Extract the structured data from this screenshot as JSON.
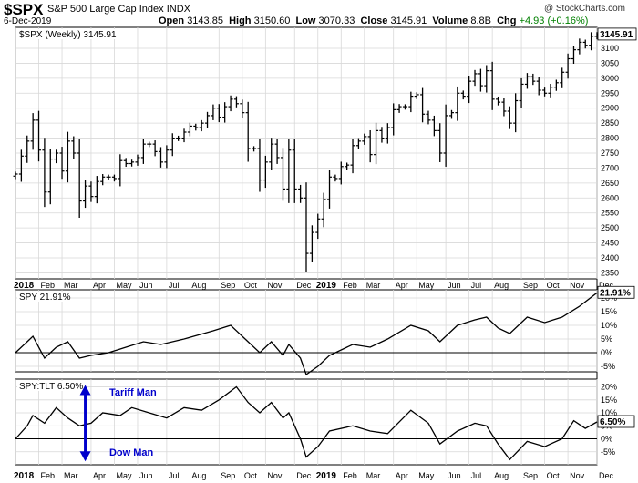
{
  "header": {
    "symbol": "$SPX",
    "name": "S&P 500 Large Cap Index",
    "exchange": "INDX",
    "date": "6-Dec-2019",
    "open_label": "Open",
    "open": "3143.85",
    "high_label": "High",
    "high": "3150.60",
    "low_label": "Low",
    "low": "3070.33",
    "close_label": "Close",
    "close": "3145.91",
    "volume_label": "Volume",
    "volume": "8.8B",
    "chg_label": "Chg",
    "chg": "+4.93 (+0.16%)",
    "chg_color": "#008000",
    "copyright": "@ StockCharts.com"
  },
  "colors": {
    "price_bar": "#000000",
    "line": "#000000",
    "arrow": "#0000cc",
    "annotation": "#0000cc",
    "grid": "#d8d8d8"
  },
  "chart_data": [
    {
      "type": "line",
      "title": "$SPX (Weekly) 3145.91",
      "last_value_label": "3145.91",
      "style": "ohlc bars",
      "ylim": [
        2330,
        3170
      ],
      "y_ticks": [
        2350,
        2400,
        2450,
        2500,
        2550,
        2600,
        2650,
        2700,
        2750,
        2800,
        2850,
        2900,
        2950,
        3000,
        3050,
        3100
      ],
      "x_ticks": [
        "2018",
        "Feb",
        "Mar",
        "Apr",
        "May",
        "Jun",
        "Jul",
        "Aug",
        "Sep",
        "Oct",
        "Nov",
        "Dec",
        "2019",
        "Feb",
        "Mar",
        "Apr",
        "May",
        "Jun",
        "Jul",
        "Aug",
        "Sep",
        "Oct",
        "Nov",
        "Dec"
      ],
      "x_start": "2018-01-05",
      "series": [
        {
          "values": [
            {
              "x": "2018-01-05",
              "close": 2680
            },
            {
              "x": "2018-01-12",
              "close": 2740
            },
            {
              "x": "2018-01-19",
              "close": 2790
            },
            {
              "x": "2018-01-26",
              "close": 2860
            },
            {
              "x": "2018-02-02",
              "close": 2760
            },
            {
              "x": "2018-02-09",
              "close": 2620
            },
            {
              "x": "2018-02-16",
              "close": 2730
            },
            {
              "x": "2018-02-23",
              "close": 2750
            },
            {
              "x": "2018-03-02",
              "close": 2690
            },
            {
              "x": "2018-03-09",
              "close": 2790
            },
            {
              "x": "2018-03-16",
              "close": 2750
            },
            {
              "x": "2018-03-23",
              "close": 2590
            },
            {
              "x": "2018-03-30",
              "close": 2640
            },
            {
              "x": "2018-04-06",
              "close": 2605
            },
            {
              "x": "2018-04-13",
              "close": 2655
            },
            {
              "x": "2018-04-20",
              "close": 2670
            },
            {
              "x": "2018-04-27",
              "close": 2670
            },
            {
              "x": "2018-05-04",
              "close": 2665
            },
            {
              "x": "2018-05-11",
              "close": 2725
            },
            {
              "x": "2018-05-18",
              "close": 2715
            },
            {
              "x": "2018-05-25",
              "close": 2720
            },
            {
              "x": "2018-06-01",
              "close": 2735
            },
            {
              "x": "2018-06-08",
              "close": 2780
            },
            {
              "x": "2018-06-15",
              "close": 2780
            },
            {
              "x": "2018-06-22",
              "close": 2755
            },
            {
              "x": "2018-06-29",
              "close": 2720
            },
            {
              "x": "2018-07-06",
              "close": 2760
            },
            {
              "x": "2018-07-13",
              "close": 2800
            },
            {
              "x": "2018-07-20",
              "close": 2800
            },
            {
              "x": "2018-07-27",
              "close": 2820
            },
            {
              "x": "2018-08-03",
              "close": 2840
            },
            {
              "x": "2018-08-10",
              "close": 2835
            },
            {
              "x": "2018-08-17",
              "close": 2850
            },
            {
              "x": "2018-08-24",
              "close": 2875
            },
            {
              "x": "2018-08-31",
              "close": 2900
            },
            {
              "x": "2018-09-07",
              "close": 2870
            },
            {
              "x": "2018-09-14",
              "close": 2905
            },
            {
              "x": "2018-09-21",
              "close": 2930
            },
            {
              "x": "2018-09-28",
              "close": 2915
            },
            {
              "x": "2018-10-05",
              "close": 2885
            },
            {
              "x": "2018-10-12",
              "close": 2765
            },
            {
              "x": "2018-10-19",
              "close": 2765
            },
            {
              "x": "2018-10-26",
              "close": 2660
            },
            {
              "x": "2018-11-02",
              "close": 2720
            },
            {
              "x": "2018-11-09",
              "close": 2780
            },
            {
              "x": "2018-11-16",
              "close": 2735
            },
            {
              "x": "2018-11-23",
              "close": 2630
            },
            {
              "x": "2018-11-30",
              "close": 2760
            },
            {
              "x": "2018-12-07",
              "close": 2630
            },
            {
              "x": "2018-12-14",
              "close": 2600
            },
            {
              "x": "2018-12-21",
              "close": 2415
            },
            {
              "x": "2018-12-28",
              "close": 2485
            },
            {
              "x": "2019-01-04",
              "close": 2530
            },
            {
              "x": "2019-01-11",
              "close": 2595
            },
            {
              "x": "2019-01-18",
              "close": 2670
            },
            {
              "x": "2019-01-25",
              "close": 2665
            },
            {
              "x": "2019-02-01",
              "close": 2705
            },
            {
              "x": "2019-02-08",
              "close": 2710
            },
            {
              "x": "2019-02-15",
              "close": 2775
            },
            {
              "x": "2019-02-22",
              "close": 2790
            },
            {
              "x": "2019-03-01",
              "close": 2805
            },
            {
              "x": "2019-03-08",
              "close": 2745
            },
            {
              "x": "2019-03-15",
              "close": 2825
            },
            {
              "x": "2019-03-22",
              "close": 2800
            },
            {
              "x": "2019-03-29",
              "close": 2835
            },
            {
              "x": "2019-04-05",
              "close": 2895
            },
            {
              "x": "2019-04-12",
              "close": 2905
            },
            {
              "x": "2019-04-19",
              "close": 2905
            },
            {
              "x": "2019-04-26",
              "close": 2940
            },
            {
              "x": "2019-05-03",
              "close": 2945
            },
            {
              "x": "2019-05-10",
              "close": 2880
            },
            {
              "x": "2019-05-17",
              "close": 2860
            },
            {
              "x": "2019-05-24",
              "close": 2825
            },
            {
              "x": "2019-05-31",
              "close": 2750
            },
            {
              "x": "2019-06-07",
              "close": 2875
            },
            {
              "x": "2019-06-14",
              "close": 2885
            },
            {
              "x": "2019-06-21",
              "close": 2950
            },
            {
              "x": "2019-06-28",
              "close": 2940
            },
            {
              "x": "2019-07-05",
              "close": 2990
            },
            {
              "x": "2019-07-12",
              "close": 3015
            },
            {
              "x": "2019-07-19",
              "close": 2975
            },
            {
              "x": "2019-07-26",
              "close": 3025
            },
            {
              "x": "2019-08-02",
              "close": 2930
            },
            {
              "x": "2019-08-09",
              "close": 2920
            },
            {
              "x": "2019-08-16",
              "close": 2890
            },
            {
              "x": "2019-08-23",
              "close": 2850
            },
            {
              "x": "2019-08-30",
              "close": 2925
            },
            {
              "x": "2019-09-06",
              "close": 2980
            },
            {
              "x": "2019-09-13",
              "close": 3005
            },
            {
              "x": "2019-09-20",
              "close": 2990
            },
            {
              "x": "2019-09-27",
              "close": 2960
            },
            {
              "x": "2019-10-04",
              "close": 2950
            },
            {
              "x": "2019-10-11",
              "close": 2970
            },
            {
              "x": "2019-10-18",
              "close": 2985
            },
            {
              "x": "2019-10-25",
              "close": 3020
            },
            {
              "x": "2019-11-01",
              "close": 3065
            },
            {
              "x": "2019-11-08",
              "close": 3095
            },
            {
              "x": "2019-11-15",
              "close": 3120
            },
            {
              "x": "2019-11-22",
              "close": 3110
            },
            {
              "x": "2019-11-29",
              "close": 3140
            },
            {
              "x": "2019-12-06",
              "close": 3145.91
            }
          ]
        }
      ]
    },
    {
      "type": "line",
      "title": "SPY 21.91%",
      "last_value_label": "21.91%",
      "ylim": [
        -7,
        23
      ],
      "y_ticks": [
        "20%",
        "15%",
        "10%",
        "5%",
        "0%",
        "-5%"
      ],
      "zero_line": true,
      "series": [
        {
          "values": [
            {
              "x": "2018-01-05",
              "y": 0
            },
            {
              "x": "2018-01-19",
              "y": 4
            },
            {
              "x": "2018-01-26",
              "y": 6
            },
            {
              "x": "2018-02-09",
              "y": -2
            },
            {
              "x": "2018-02-23",
              "y": 2
            },
            {
              "x": "2018-03-09",
              "y": 4
            },
            {
              "x": "2018-03-23",
              "y": -2
            },
            {
              "x": "2018-04-06",
              "y": -1
            },
            {
              "x": "2018-04-27",
              "y": 0
            },
            {
              "x": "2018-05-18",
              "y": 2
            },
            {
              "x": "2018-06-08",
              "y": 4
            },
            {
              "x": "2018-06-29",
              "y": 3
            },
            {
              "x": "2018-07-27",
              "y": 5
            },
            {
              "x": "2018-08-31",
              "y": 8
            },
            {
              "x": "2018-09-21",
              "y": 10
            },
            {
              "x": "2018-10-12",
              "y": 4
            },
            {
              "x": "2018-10-26",
              "y": 0
            },
            {
              "x": "2018-11-09",
              "y": 4
            },
            {
              "x": "2018-11-23",
              "y": -1
            },
            {
              "x": "2018-11-30",
              "y": 3
            },
            {
              "x": "2018-12-14",
              "y": -2
            },
            {
              "x": "2018-12-21",
              "y": -8
            },
            {
              "x": "2019-01-04",
              "y": -5
            },
            {
              "x": "2019-01-18",
              "y": -1
            },
            {
              "x": "2019-02-15",
              "y": 3
            },
            {
              "x": "2019-03-08",
              "y": 2
            },
            {
              "x": "2019-03-29",
              "y": 5
            },
            {
              "x": "2019-04-26",
              "y": 10
            },
            {
              "x": "2019-05-17",
              "y": 8
            },
            {
              "x": "2019-05-31",
              "y": 4
            },
            {
              "x": "2019-06-21",
              "y": 10
            },
            {
              "x": "2019-07-12",
              "y": 12
            },
            {
              "x": "2019-07-26",
              "y": 13
            },
            {
              "x": "2019-08-09",
              "y": 9
            },
            {
              "x": "2019-08-23",
              "y": 7
            },
            {
              "x": "2019-09-13",
              "y": 13
            },
            {
              "x": "2019-10-04",
              "y": 11
            },
            {
              "x": "2019-10-25",
              "y": 13
            },
            {
              "x": "2019-11-15",
              "y": 17
            },
            {
              "x": "2019-12-06",
              "y": 21.91
            }
          ]
        }
      ]
    },
    {
      "type": "line",
      "title": "SPY:TLT 6.50%",
      "last_value_label": "6.50%",
      "ylim": [
        -10,
        23
      ],
      "y_ticks": [
        "20%",
        "15%",
        "10%",
        "5%",
        "0%",
        "-5%"
      ],
      "zero_line": true,
      "annotations": [
        {
          "text": "Tariff Man",
          "x": "2018-04-06",
          "y": 18
        },
        {
          "text": "Dow Man",
          "x": "2018-04-06",
          "y": -5
        }
      ],
      "arrow": {
        "x": "2018-03-30",
        "y_top": 20,
        "y_bottom": -8
      },
      "series": [
        {
          "values": [
            {
              "x": "2018-01-05",
              "y": 0
            },
            {
              "x": "2018-01-19",
              "y": 5
            },
            {
              "x": "2018-01-26",
              "y": 9
            },
            {
              "x": "2018-02-09",
              "y": 6
            },
            {
              "x": "2018-02-23",
              "y": 12
            },
            {
              "x": "2018-03-09",
              "y": 8
            },
            {
              "x": "2018-03-23",
              "y": 5
            },
            {
              "x": "2018-04-06",
              "y": 6
            },
            {
              "x": "2018-04-20",
              "y": 10
            },
            {
              "x": "2018-05-11",
              "y": 9
            },
            {
              "x": "2018-05-25",
              "y": 12
            },
            {
              "x": "2018-06-15",
              "y": 10
            },
            {
              "x": "2018-07-06",
              "y": 8
            },
            {
              "x": "2018-07-27",
              "y": 12
            },
            {
              "x": "2018-08-17",
              "y": 11
            },
            {
              "x": "2018-09-07",
              "y": 15
            },
            {
              "x": "2018-09-28",
              "y": 20
            },
            {
              "x": "2018-10-12",
              "y": 14
            },
            {
              "x": "2018-10-26",
              "y": 10
            },
            {
              "x": "2018-11-09",
              "y": 14
            },
            {
              "x": "2018-11-23",
              "y": 8
            },
            {
              "x": "2018-11-30",
              "y": 10
            },
            {
              "x": "2018-12-14",
              "y": 0
            },
            {
              "x": "2018-12-21",
              "y": -7
            },
            {
              "x": "2019-01-04",
              "y": -3
            },
            {
              "x": "2019-01-18",
              "y": 3
            },
            {
              "x": "2019-02-15",
              "y": 5
            },
            {
              "x": "2019-03-08",
              "y": 3
            },
            {
              "x": "2019-03-29",
              "y": 2
            },
            {
              "x": "2019-04-26",
              "y": 11
            },
            {
              "x": "2019-05-17",
              "y": 6
            },
            {
              "x": "2019-05-31",
              "y": -2
            },
            {
              "x": "2019-06-21",
              "y": 3
            },
            {
              "x": "2019-07-12",
              "y": 6
            },
            {
              "x": "2019-07-26",
              "y": 5
            },
            {
              "x": "2019-08-09",
              "y": -2
            },
            {
              "x": "2019-08-23",
              "y": -8
            },
            {
              "x": "2019-09-13",
              "y": -1
            },
            {
              "x": "2019-10-04",
              "y": -3
            },
            {
              "x": "2019-10-25",
              "y": 0
            },
            {
              "x": "2019-11-08",
              "y": 7
            },
            {
              "x": "2019-11-22",
              "y": 4
            },
            {
              "x": "2019-12-06",
              "y": 6.5
            }
          ]
        }
      ]
    }
  ]
}
